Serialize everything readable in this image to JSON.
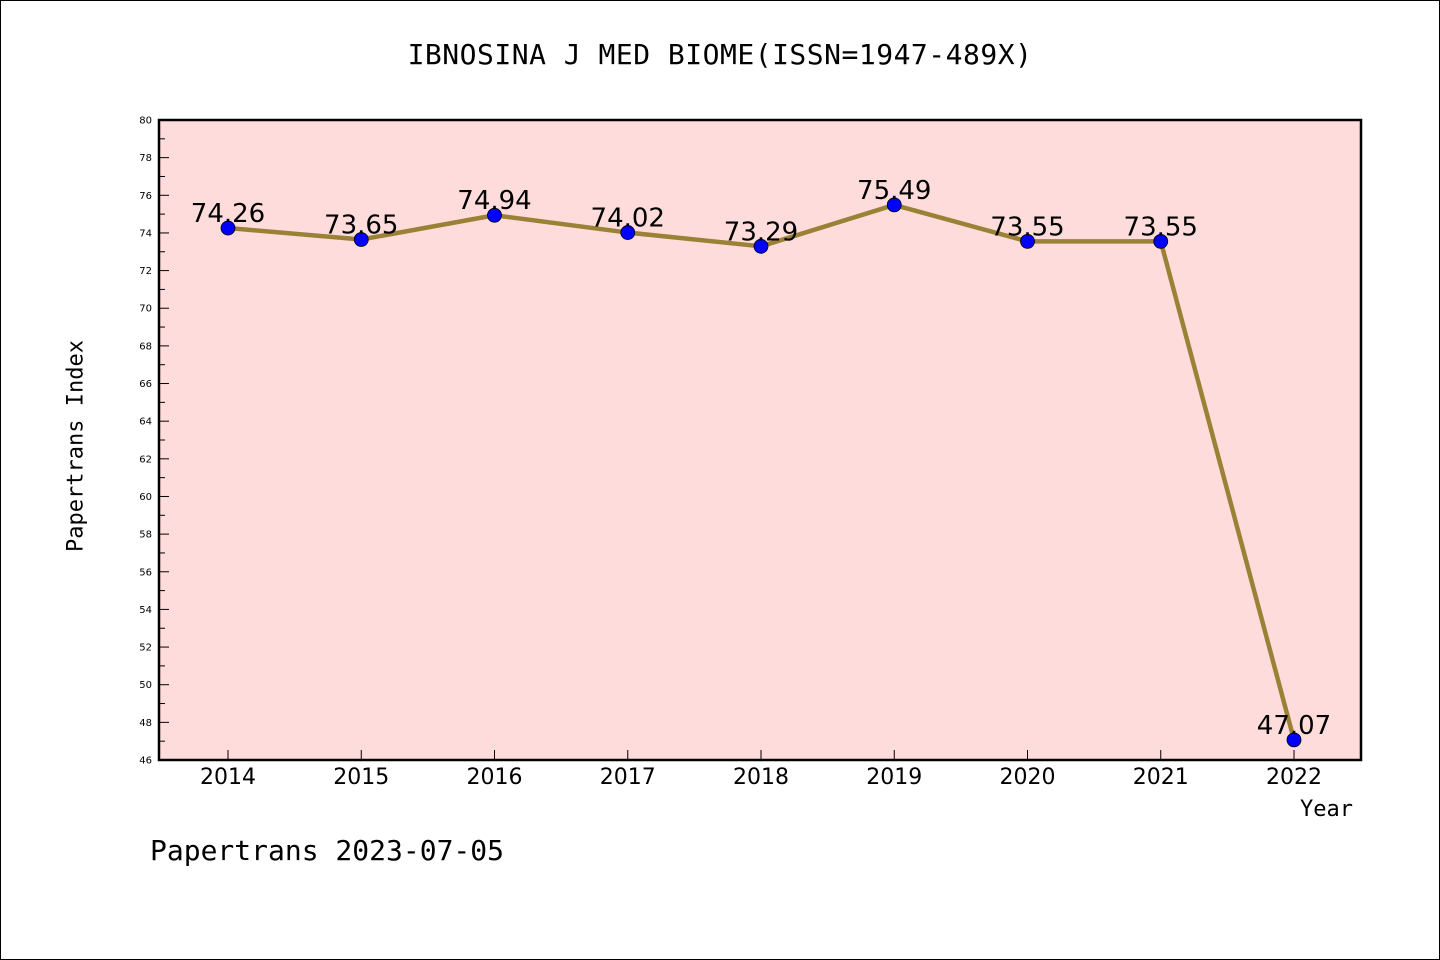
{
  "chart_data": {
    "type": "line",
    "title": "IBNOSINA J MED BIOME(ISSN=1947-489X)",
    "xlabel": "Year",
    "ylabel": "Papertrans Index",
    "categories": [
      "2014",
      "2015",
      "2016",
      "2017",
      "2018",
      "2019",
      "2020",
      "2021",
      "2022"
    ],
    "values": [
      74.26,
      73.65,
      74.94,
      74.02,
      73.29,
      75.49,
      73.55,
      73.55,
      47.07
    ],
    "data_labels": [
      "74.26",
      "73.65",
      "74.94",
      "74.02",
      "73.29",
      "75.49",
      "73.55",
      "73.55",
      "47.07"
    ],
    "ylim": [
      46,
      80
    ],
    "yticks": [
      46,
      48,
      50,
      52,
      54,
      56,
      58,
      60,
      62,
      64,
      66,
      68,
      70,
      72,
      74,
      76,
      78,
      80
    ],
    "grid": false,
    "colors": {
      "plot_background": "#ffdcdc",
      "line": "#9b8136",
      "marker": "#0000ff"
    }
  },
  "footer": "Papertrans 2023-07-05"
}
